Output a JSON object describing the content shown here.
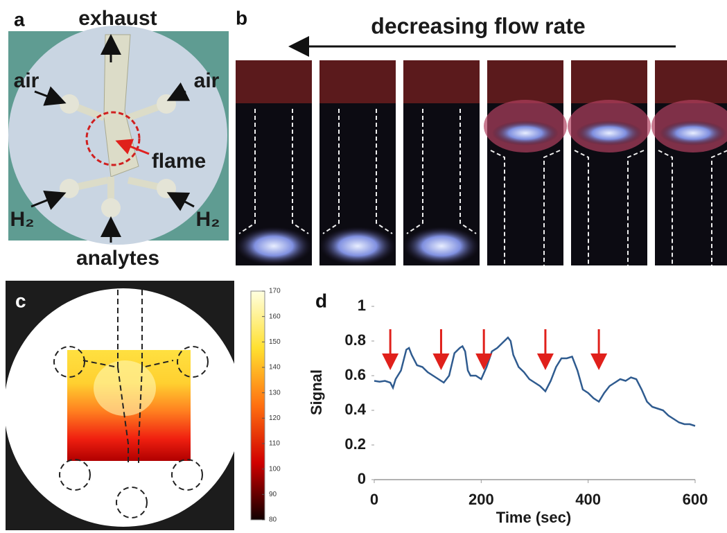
{
  "panel_a": {
    "label": "a",
    "exhaust": "exhaust",
    "air": [
      "air",
      "air"
    ],
    "flame": "flame",
    "h2": [
      "H₂",
      "H₂"
    ],
    "analytes": "analytes"
  },
  "panel_b": {
    "label": "b",
    "caption": "decreasing flow rate"
  },
  "panel_c": {
    "label": "c",
    "colorbar": {
      "lim": [
        80,
        170
      ],
      "ticks": [
        80,
        90,
        100,
        110,
        120,
        130,
        140,
        150,
        160,
        170
      ]
    }
  },
  "chart_data": {
    "type": "line",
    "label": "d",
    "xlabel": "Time (sec)",
    "ylabel": "Signal",
    "x": [
      0,
      10,
      20,
      30,
      35,
      40,
      50,
      60,
      65,
      70,
      80,
      90,
      100,
      110,
      120,
      130,
      140,
      150,
      160,
      165,
      170,
      175,
      180,
      190,
      200,
      210,
      220,
      230,
      240,
      250,
      255,
      260,
      270,
      280,
      290,
      300,
      310,
      320,
      330,
      340,
      350,
      360,
      370,
      380,
      390,
      400,
      410,
      420,
      430,
      440,
      450,
      460,
      470,
      480,
      490,
      500,
      510,
      520,
      530,
      540,
      550,
      560,
      570,
      580,
      590,
      600
    ],
    "series": [
      {
        "color": "#2f5b8f",
        "values": [
          0.57,
          0.565,
          0.57,
          0.56,
          0.53,
          0.58,
          0.63,
          0.75,
          0.76,
          0.72,
          0.66,
          0.65,
          0.62,
          0.6,
          0.58,
          0.56,
          0.6,
          0.73,
          0.76,
          0.77,
          0.74,
          0.63,
          0.6,
          0.6,
          0.58,
          0.65,
          0.74,
          0.76,
          0.79,
          0.82,
          0.8,
          0.72,
          0.65,
          0.62,
          0.58,
          0.56,
          0.54,
          0.51,
          0.57,
          0.65,
          0.7,
          0.7,
          0.71,
          0.63,
          0.52,
          0.5,
          0.47,
          0.45,
          0.5,
          0.54,
          0.56,
          0.58,
          0.57,
          0.59,
          0.58,
          0.52,
          0.45,
          0.42,
          0.41,
          0.4,
          0.37,
          0.35,
          0.33,
          0.32,
          0.32,
          0.31
        ]
      }
    ],
    "xlim": [
      0,
      600
    ],
    "xticks": [
      0,
      200,
      400,
      600
    ],
    "ylim": [
      0,
      1
    ],
    "yticks": [
      0,
      0.2,
      0.4,
      0.6,
      0.8,
      1
    ],
    "arrows": {
      "x": [
        30,
        125,
        205,
        320,
        420
      ],
      "color": "#e0201b"
    }
  }
}
